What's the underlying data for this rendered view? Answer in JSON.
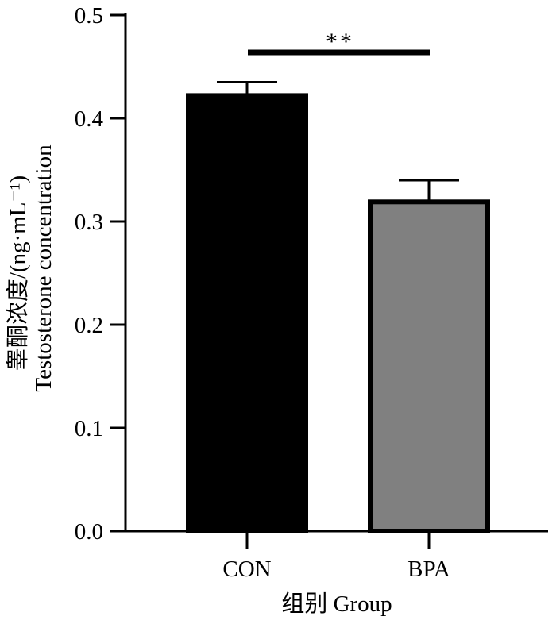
{
  "chart_data": {
    "type": "bar",
    "categories": [
      "CON",
      "BPA"
    ],
    "values": [
      0.422,
      0.319
    ],
    "errors": [
      0.013,
      0.021
    ],
    "colors": [
      "#000000",
      "#808080"
    ],
    "ylim": [
      0,
      0.5
    ],
    "yticks": [
      "0.0",
      "0.1",
      "0.2",
      "0.3",
      "0.4",
      "0.5"
    ],
    "ytick_values": [
      0,
      0.1,
      0.2,
      0.3,
      0.4,
      0.5
    ],
    "ylabel_line1": "睾酮浓度/(ng·mL⁻¹)",
    "ylabel_line2": "Testosterone concentration",
    "xlabel": "组别 Group",
    "significance": {
      "text": "**",
      "from": "CON",
      "to": "BPA"
    }
  }
}
